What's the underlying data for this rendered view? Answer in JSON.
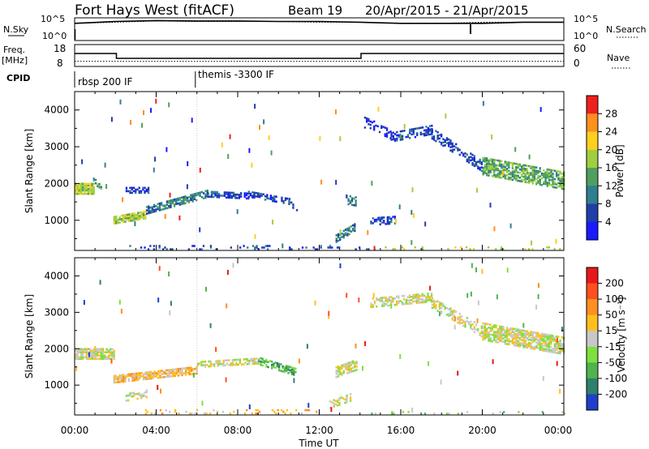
{
  "header": {
    "title": "Fort Hays West (fitACF)",
    "beam": "Beam 19",
    "date_range": "20/Apr/2015 - 21/Apr/2015"
  },
  "panels": {
    "nsky_label": "N.Sky",
    "nsearch_label": "N.Search",
    "freq_label_line1": "Freq.",
    "freq_label_line2": "[MHz]",
    "nave_label": "Nave",
    "cpid_label": "CPID",
    "noise_left_ticks": [
      "10^5",
      "10^0"
    ],
    "noise_right_ticks": [
      "10^5",
      "10^0"
    ],
    "freq_ticks": [
      "18",
      "8"
    ],
    "nave_ticks": [
      "60",
      "0"
    ],
    "cpid_segments": [
      {
        "label": "rbsp 200 IF",
        "start_hour": 0
      },
      {
        "label": "themis -3300 IF",
        "start_hour": 6
      }
    ]
  },
  "axes": {
    "x_label": "Time UT",
    "x_ticks": [
      "00:00",
      "04:00",
      "08:00",
      "12:00",
      "16:00",
      "20:00",
      "00:00"
    ],
    "y_label": "Slant Range [km]",
    "y_ticks": [
      "1000",
      "2000",
      "3000",
      "4000"
    ]
  },
  "colorbars": {
    "power": {
      "label": "Power [dB]",
      "ticks": [
        "4",
        "8",
        "12",
        "16",
        "20",
        "24",
        "28"
      ],
      "colors": [
        "#1a1aff",
        "#1f3fa8",
        "#2f7f8f",
        "#4f9f5f",
        "#9fcf3f",
        "#ffcf1f",
        "#ff8f1f",
        "#ef1f1f"
      ]
    },
    "velocity": {
      "label": "Velocity [m s⁻¹]",
      "ticks": [
        "200",
        "100",
        "50",
        "15",
        "-15",
        "-50",
        "-100",
        "-200"
      ],
      "colors": [
        "#1f3fc8",
        "#2f7f6f",
        "#4fb44f",
        "#7fdf3f",
        "#c8c8c8",
        "#ffbf1f",
        "#ff8f1f",
        "#ff4f1f",
        "#e81818"
      ]
    }
  },
  "chart_data": [
    {
      "type": "line",
      "title": "N.Sky / N.Search",
      "x": [
        0,
        2,
        4,
        6,
        8,
        10,
        12,
        14,
        16,
        18,
        20,
        22,
        24
      ],
      "series": [
        {
          "name": "N.Sky",
          "values": [
            10000,
            30000,
            50000,
            40000,
            40000,
            30000,
            30000,
            20000,
            10000,
            10000,
            10000,
            20000,
            20000
          ]
        },
        {
          "name": "N.Search",
          "values": [
            10000,
            20000,
            40000,
            30000,
            30000,
            30000,
            20000,
            20000,
            10000,
            10000,
            20000,
            20000,
            20000
          ]
        }
      ],
      "ylim": [
        1,
        100000
      ],
      "yscale": "log"
    },
    {
      "type": "line",
      "title": "Freq. / Nave",
      "x": [
        0,
        2.05,
        2.05,
        14.05,
        14.05,
        24
      ],
      "series": [
        {
          "name": "Freq.",
          "values": [
            14.0,
            14.0,
            11.6,
            11.6,
            14.0,
            14.0
          ]
        },
        {
          "name": "Nave",
          "values": [
            13,
            13,
            13,
            13,
            13,
            13
          ]
        }
      ],
      "ylim_freq": [
        8,
        18
      ],
      "ylim_nave": [
        0,
        60
      ]
    },
    {
      "type": "scatter",
      "title": "Power",
      "xlabel": "Time UT",
      "ylabel": "Slant Range [km]",
      "xlim": [
        0,
        24
      ],
      "ylim": [
        180,
        4500
      ],
      "colorbar": "power",
      "regions": [
        {
          "t": [
            0.0,
            0.9
          ],
          "r": [
            1900,
            1900
          ],
          "w": 300,
          "lvl": 4,
          "d": 0.9
        },
        {
          "t": [
            0.9,
            1.3
          ],
          "r": [
            2100,
            1950
          ],
          "w": 150,
          "lvl": 3,
          "d": 0.5
        },
        {
          "t": [
            1.9,
            3.5
          ],
          "r": [
            1050,
            1200
          ],
          "w": 220,
          "lvl": 4,
          "d": 0.85
        },
        {
          "t": [
            3.5,
            6.5
          ],
          "r": [
            1300,
            1750
          ],
          "w": 180,
          "lvl": 2,
          "d": 0.7
        },
        {
          "t": [
            6.5,
            8.5
          ],
          "r": [
            1750,
            1700
          ],
          "w": 160,
          "lvl": 1,
          "d": 0.6
        },
        {
          "t": [
            8.5,
            10.5
          ],
          "r": [
            1750,
            1550
          ],
          "w": 160,
          "lvl": 1,
          "d": 0.55
        },
        {
          "t": [
            10.5,
            11.0
          ],
          "r": [
            1550,
            1250
          ],
          "w": 150,
          "lvl": 1,
          "d": 0.4
        },
        {
          "t": [
            2.5,
            3.6
          ],
          "r": [
            1850,
            1850
          ],
          "w": 150,
          "lvl": 1,
          "d": 0.6
        },
        {
          "t": [
            12.8,
            13.7
          ],
          "r": [
            550,
            850
          ],
          "w": 220,
          "lvl": 2,
          "d": 0.7
        },
        {
          "t": [
            13.3,
            13.8
          ],
          "r": [
            1600,
            1550
          ],
          "w": 250,
          "lvl": 2,
          "d": 0.5
        },
        {
          "t": [
            14.5,
            15.8
          ],
          "r": [
            1000,
            1050
          ],
          "w": 200,
          "lvl": 1,
          "d": 0.5
        },
        {
          "t": [
            15.5,
            17.5
          ],
          "r": [
            3300,
            3500
          ],
          "w": 250,
          "lvl": 1,
          "d": 0.55
        },
        {
          "t": [
            14.2,
            15.5
          ],
          "r": [
            3700,
            3400
          ],
          "w": 300,
          "lvl": 0,
          "d": 0.25
        },
        {
          "t": [
            17.5,
            20.0
          ],
          "r": [
            3400,
            2500
          ],
          "w": 300,
          "lvl": 1,
          "d": 0.5
        },
        {
          "t": [
            20.0,
            24.0
          ],
          "r": [
            2500,
            2100
          ],
          "w": 450,
          "lvl": 3,
          "d": 0.75
        },
        {
          "t": [
            2.5,
            14.5
          ],
          "r": [
            300,
            300
          ],
          "w": 120,
          "lvl": 1,
          "d": 0.15
        },
        {
          "t": [
            14.5,
            24.0
          ],
          "r": [
            250,
            250
          ],
          "w": 100,
          "lvl": 4,
          "d": 0.12
        }
      ]
    },
    {
      "type": "scatter",
      "title": "Velocity",
      "xlabel": "Time UT",
      "ylabel": "Slant Range [km]",
      "xlim": [
        0,
        24
      ],
      "ylim": [
        180,
        4500
      ],
      "colorbar": "velocity",
      "regions": [
        {
          "t": [
            0.0,
            1.9
          ],
          "r": [
            1900,
            1900
          ],
          "w": 300,
          "lvl": 4,
          "d": 0.85
        },
        {
          "t": [
            1.9,
            6.0
          ],
          "r": [
            1200,
            1450
          ],
          "w": 200,
          "lvl": 5,
          "d": 0.75
        },
        {
          "t": [
            2.5,
            3.5
          ],
          "r": [
            700,
            800
          ],
          "w": 200,
          "lvl": 4,
          "d": 0.5
        },
        {
          "t": [
            6.0,
            9.0
          ],
          "r": [
            1600,
            1700
          ],
          "w": 150,
          "lvl": 4,
          "d": 0.6
        },
        {
          "t": [
            9.0,
            10.8
          ],
          "r": [
            1700,
            1400
          ],
          "w": 200,
          "lvl": 2,
          "d": 0.7
        },
        {
          "t": [
            12.8,
            13.8
          ],
          "r": [
            1400,
            1600
          ],
          "w": 300,
          "lvl": 4,
          "d": 0.7
        },
        {
          "t": [
            12.5,
            13.5
          ],
          "r": [
            500,
            700
          ],
          "w": 200,
          "lvl": 4,
          "d": 0.5
        },
        {
          "t": [
            14.5,
            17.5
          ],
          "r": [
            3300,
            3450
          ],
          "w": 250,
          "lvl": 4,
          "d": 0.55
        },
        {
          "t": [
            17.5,
            20.0
          ],
          "r": [
            3300,
            2500
          ],
          "w": 300,
          "lvl": 4,
          "d": 0.5
        },
        {
          "t": [
            20.0,
            24.0
          ],
          "r": [
            2500,
            2100
          ],
          "w": 450,
          "lvl": 4,
          "d": 0.75
        },
        {
          "t": [
            3.0,
            12.0
          ],
          "r": [
            300,
            300
          ],
          "w": 100,
          "lvl": 5,
          "d": 0.15
        },
        {
          "t": [
            14.0,
            24.0
          ],
          "r": [
            250,
            250
          ],
          "w": 100,
          "lvl": 3,
          "d": 0.12
        }
      ]
    }
  ]
}
